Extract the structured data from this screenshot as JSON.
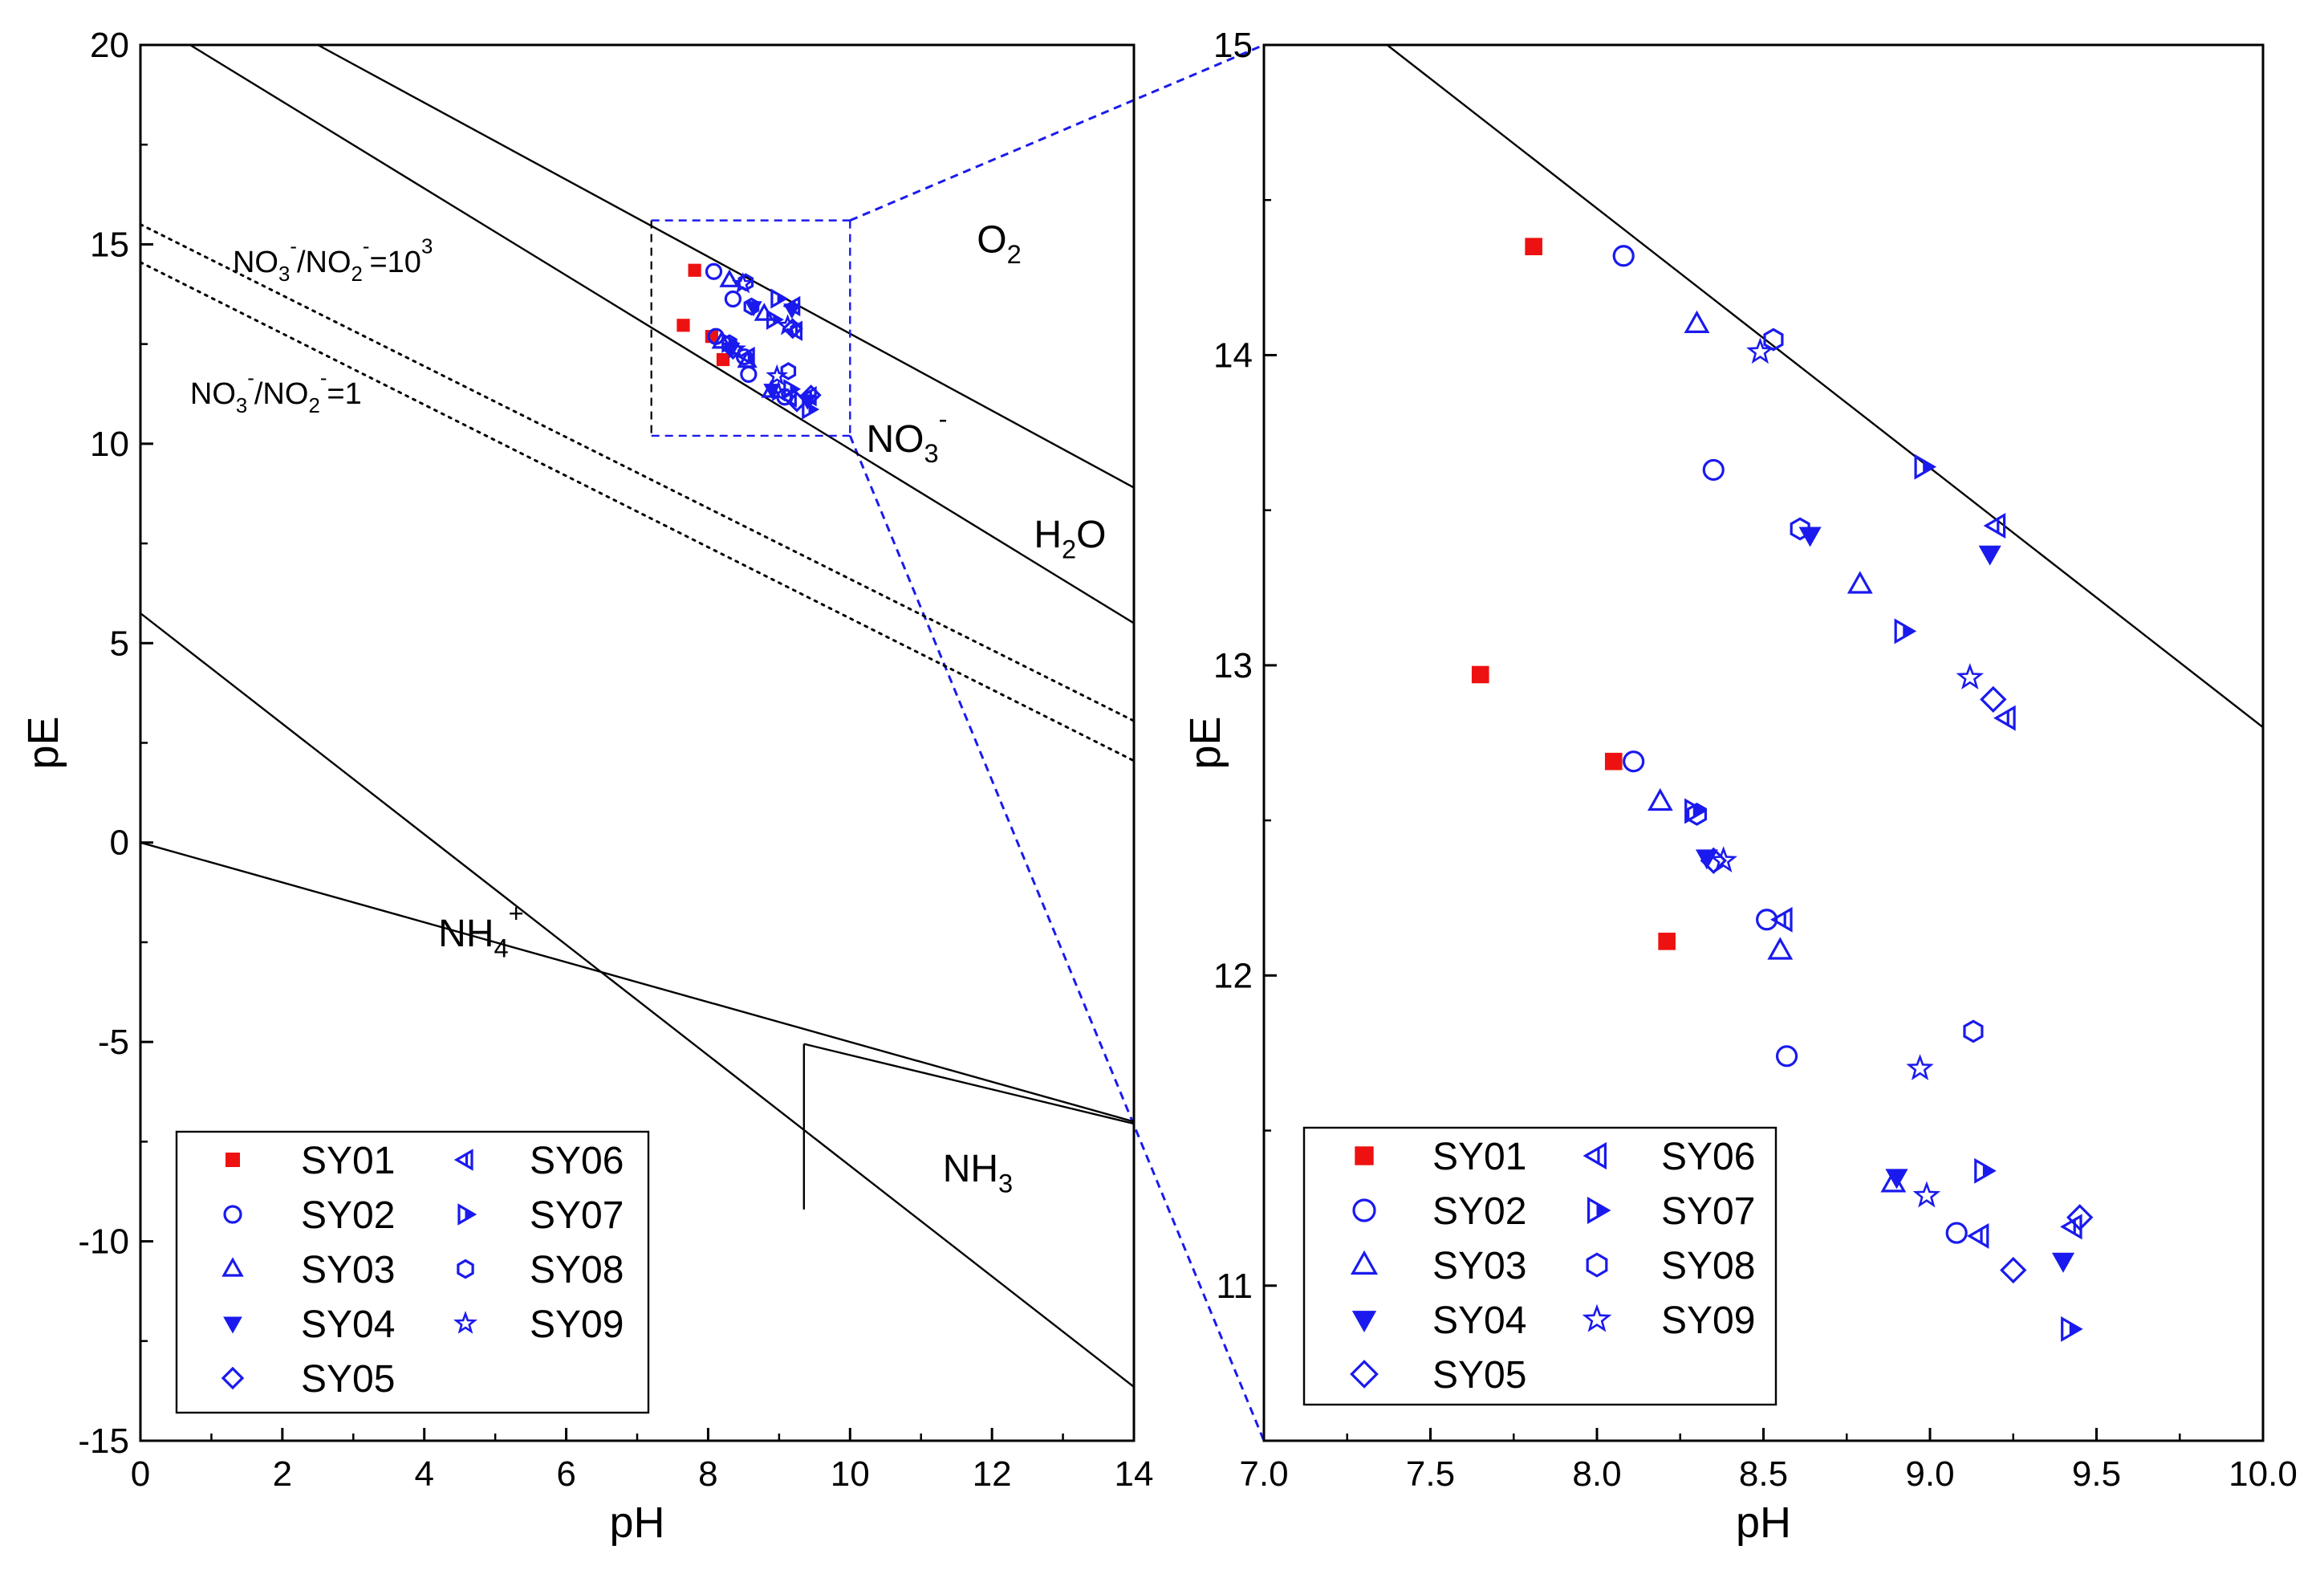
{
  "colors": {
    "sy01": "#ee1111",
    "blue": "#1a1aee",
    "frame": "#000000",
    "zoom_box": "#1a1aee"
  },
  "chart_data": [
    {
      "type": "scatter",
      "xlabel": "pH",
      "ylabel": "pE",
      "xlim": [
        0,
        14
      ],
      "ylim": [
        -15,
        20
      ],
      "xticks": [
        "0",
        "2",
        "4",
        "6",
        "8",
        "10",
        "12",
        "14"
      ],
      "yticks": [
        "-15",
        "-10",
        "-5",
        "0",
        "5",
        "10",
        "15",
        "20"
      ],
      "lines": [
        {
          "name": "O2/H2O boundary",
          "style": "solid",
          "x": [
            2.5,
            14
          ],
          "y": [
            20,
            8.9
          ]
        },
        {
          "name": "H2O/NO3- boundary",
          "style": "solid",
          "x": [
            0.7,
            14
          ],
          "y": [
            20,
            5.5
          ]
        },
        {
          "name": "NO3-/NO2- = 10^3",
          "style": "dotted",
          "x": [
            0,
            14
          ],
          "y": [
            15.5,
            3.05
          ]
        },
        {
          "name": "NO3-/NO2- = 1",
          "style": "dotted",
          "x": [
            0,
            14
          ],
          "y": [
            14.55,
            2.05
          ]
        },
        {
          "name": "upper NH4+ boundary",
          "style": "solid",
          "x": [
            0,
            14
          ],
          "y": [
            5.75,
            -13.65
          ]
        },
        {
          "name": "lower NH4+ boundary",
          "style": "solid",
          "x": [
            0,
            14
          ],
          "y": [
            0,
            -7.0
          ]
        },
        {
          "name": "NH4+/NH3 vertical",
          "style": "solid",
          "x": [
            9.35,
            9.35
          ],
          "y": [
            -5.05,
            -9.2
          ]
        },
        {
          "name": "NH3 upper",
          "style": "solid",
          "x": [
            9.35,
            14
          ],
          "y": [
            -5.05,
            -7.05
          ]
        }
      ],
      "region_labels": [
        {
          "base": "O",
          "sub": "2",
          "x": 12.1,
          "y": 14.8
        },
        {
          "base": "NO",
          "sub": "3",
          "sup": "-",
          "x": 10.8,
          "y": 9.8
        },
        {
          "base": "H",
          "sub": "2",
          "after": "O",
          "x": 13.1,
          "y": 7.4
        },
        {
          "base": "NH",
          "sub": "4",
          "sup": "+",
          "x": 4.8,
          "y": -2.6
        },
        {
          "base": "NH",
          "sub": "3",
          "x": 11.8,
          "y": -8.5
        }
      ],
      "ratio_labels": [
        {
          "parts": [
            "NO",
            "3",
            "-",
            "/NO",
            "2",
            "-",
            "=10",
            "3"
          ],
          "x": 1.3,
          "y": 14.3
        },
        {
          "parts": [
            "NO",
            "3",
            "-",
            "/NO",
            "2",
            "-",
            "=1"
          ],
          "x": 0.7,
          "y": 11.0
        }
      ],
      "zoom_box": {
        "x": [
          7.2,
          10.0
        ],
        "y": [
          10.2,
          15.6
        ]
      },
      "legend": {
        "position": "bottom-left",
        "entries": [
          "SY01",
          "SY02",
          "SY03",
          "SY04",
          "SY05",
          "SY06",
          "SY07",
          "SY08",
          "SY09"
        ]
      }
    },
    {
      "type": "scatter",
      "xlabel": "pH",
      "ylabel": "pE",
      "xlim": [
        7.0,
        10.0
      ],
      "ylim": [
        10.5,
        15
      ],
      "xticks": [
        "7.0",
        "7.5",
        "8.0",
        "8.5",
        "9.0",
        "9.5",
        "10.0"
      ],
      "yticks": [
        "11",
        "12",
        "13",
        "14",
        "15"
      ],
      "lines": [
        {
          "name": "H2O/NO3- boundary",
          "style": "solid",
          "x": [
            7.37,
            10.0
          ],
          "y": [
            15.0,
            12.8
          ]
        }
      ],
      "legend": {
        "position": "bottom-left",
        "entries": [
          "SY01",
          "SY02",
          "SY03",
          "SY04",
          "SY05",
          "SY06",
          "SY07",
          "SY08",
          "SY09"
        ]
      },
      "series": [
        {
          "name": "SY01",
          "marker": "square-filled",
          "x": [
            7.81,
            7.65,
            8.05,
            8.21
          ],
          "y": [
            14.35,
            12.97,
            12.69,
            12.11
          ]
        },
        {
          "name": "SY02",
          "marker": "circle-open",
          "x": [
            8.08,
            8.35,
            8.11,
            8.51,
            8.57,
            9.08
          ],
          "y": [
            14.32,
            13.63,
            12.69,
            12.18,
            11.74,
            11.17
          ]
        },
        {
          "name": "SY03",
          "marker": "triangle-up-open",
          "x": [
            8.3,
            8.79,
            8.19,
            8.55,
            8.89
          ],
          "y": [
            14.1,
            13.26,
            12.56,
            12.08,
            11.33
          ]
        },
        {
          "name": "SY04",
          "marker": "triangle-down-filled",
          "x": [
            8.64,
            9.18,
            8.33,
            8.9,
            9.4
          ],
          "y": [
            13.42,
            13.36,
            12.38,
            11.35,
            11.08
          ]
        },
        {
          "name": "SY05",
          "marker": "diamond-open",
          "x": [
            9.19,
            8.35,
            9.25,
            9.45
          ],
          "y": [
            12.89,
            12.37,
            11.05,
            11.22
          ]
        },
        {
          "name": "SY06",
          "marker": "triangle-left-open",
          "x": [
            9.2,
            9.23,
            8.56,
            9.15,
            9.43
          ],
          "y": [
            13.45,
            12.83,
            12.18,
            11.16,
            11.19
          ]
        },
        {
          "name": "SY07",
          "marker": "triangle-right-filled",
          "x": [
            8.98,
            8.92,
            8.29,
            9.16,
            9.42
          ],
          "y": [
            13.64,
            13.11,
            12.53,
            11.37,
            10.86
          ]
        },
        {
          "name": "SY08",
          "marker": "hexagon-open",
          "x": [
            8.53,
            8.61,
            8.3,
            9.13
          ],
          "y": [
            14.05,
            13.44,
            12.52,
            11.82
          ]
        },
        {
          "name": "SY09",
          "marker": "star-open",
          "x": [
            8.49,
            9.12,
            8.38,
            8.97,
            8.99
          ],
          "y": [
            14.01,
            12.96,
            12.37,
            11.7,
            11.29
          ]
        }
      ]
    }
  ]
}
